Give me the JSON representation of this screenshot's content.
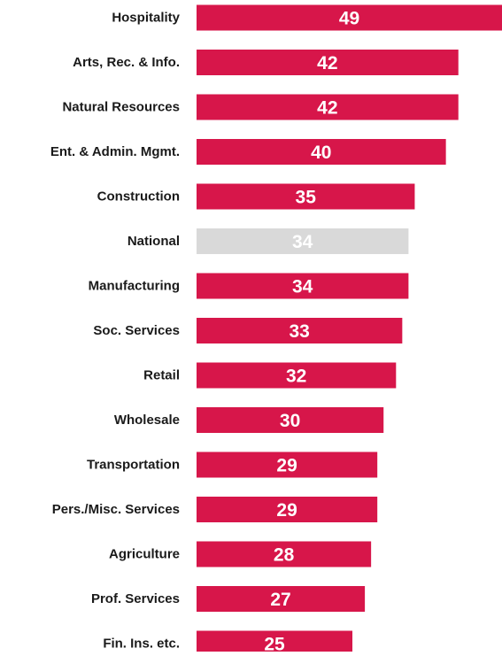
{
  "chart_data": {
    "type": "bar",
    "orientation": "horizontal",
    "title": "",
    "xlabel": "",
    "ylabel": "",
    "xlim": [
      0,
      49
    ],
    "grid": false,
    "legend": "none",
    "categories": [
      "Hospitality",
      "Arts, Rec. & Info.",
      "Natural Resources",
      "Ent. & Admin. Mgmt.",
      "Construction",
      "National",
      "Manufacturing",
      "Soc. Services",
      "Retail",
      "Wholesale",
      "Transportation",
      "Pers./Misc. Services",
      "Agriculture",
      "Prof. Services",
      "Fin. Ins. etc."
    ],
    "values": [
      49,
      42,
      42,
      40,
      35,
      34,
      34,
      33,
      32,
      30,
      29,
      29,
      28,
      27,
      25
    ],
    "highlight_category": "National",
    "colors": {
      "bar": "#d7164a",
      "highlight_bar": "#d9d9d9",
      "value_label": "#ffffff",
      "category_label": "#1a1a1a"
    }
  }
}
